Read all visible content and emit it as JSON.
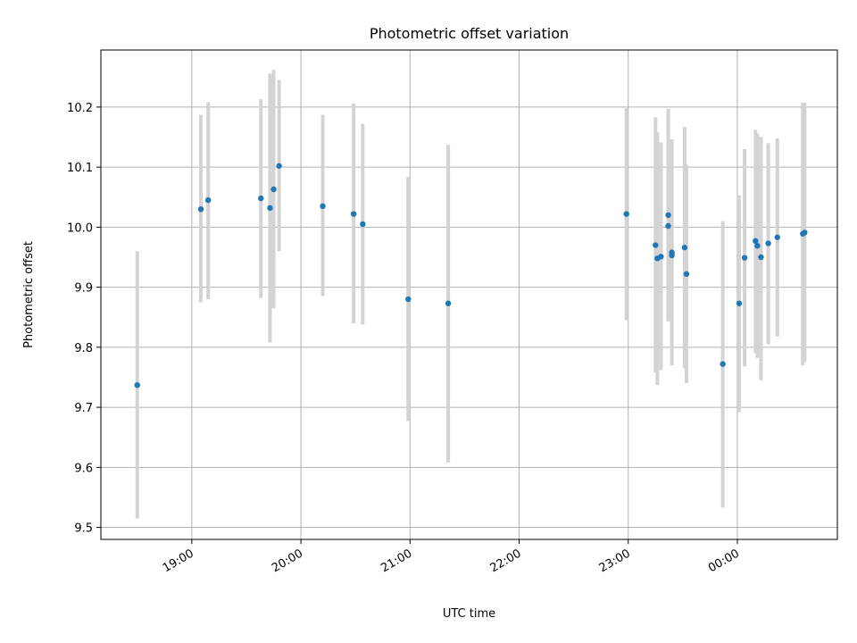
{
  "chart_data": {
    "type": "scatter",
    "title": "Photometric offset variation",
    "xlabel": "UTC time",
    "ylabel": "Photometric offset",
    "x_axis_type": "time",
    "x_axis_start": "2000-01-01 18:10",
    "x_axis_end": "2000-01-02 00:55",
    "x_ticks": [
      {
        "at": "2000-01-01 19:00",
        "label": "19:00"
      },
      {
        "at": "2000-01-01 20:00",
        "label": "20:00"
      },
      {
        "at": "2000-01-01 21:00",
        "label": "21:00"
      },
      {
        "at": "2000-01-01 22:00",
        "label": "22:00"
      },
      {
        "at": "2000-01-01 23:00",
        "label": "23:00"
      },
      {
        "at": "2000-01-02 00:00",
        "label": "00:00"
      }
    ],
    "ylim": [
      9.48,
      10.295
    ],
    "y_ticks": [
      9.5,
      9.6,
      9.7,
      9.8,
      9.9,
      10.0,
      10.1,
      10.2
    ],
    "y_tick_labels": [
      "9.5",
      "9.6",
      "9.7",
      "9.8",
      "9.9",
      "10.0",
      "10.1",
      "10.2"
    ],
    "grid": true,
    "point_color": "#1f77b4",
    "errorbar_color": "#d3d3d3",
    "points": [
      {
        "t": "2000-01-01 18:30",
        "y": 9.737,
        "lo": 9.515,
        "hi": 9.96
      },
      {
        "t": "2000-01-01 19:05",
        "y": 10.03,
        "lo": 9.875,
        "hi": 10.187
      },
      {
        "t": "2000-01-01 19:09",
        "y": 10.045,
        "lo": 9.88,
        "hi": 10.208
      },
      {
        "t": "2000-01-01 19:38",
        "y": 10.048,
        "lo": 9.882,
        "hi": 10.213
      },
      {
        "t": "2000-01-01 19:43",
        "y": 10.032,
        "lo": 9.808,
        "hi": 10.256
      },
      {
        "t": "2000-01-01 19:45",
        "y": 10.063,
        "lo": 9.865,
        "hi": 10.262
      },
      {
        "t": "2000-01-01 19:48",
        "y": 10.102,
        "lo": 9.96,
        "hi": 10.245
      },
      {
        "t": "2000-01-01 20:12",
        "y": 10.035,
        "lo": 9.885,
        "hi": 10.187
      },
      {
        "t": "2000-01-01 20:29",
        "y": 10.022,
        "lo": 9.84,
        "hi": 10.206
      },
      {
        "t": "2000-01-01 20:34",
        "y": 10.005,
        "lo": 9.838,
        "hi": 10.172
      },
      {
        "t": "2000-01-01 20:59",
        "y": 9.88,
        "lo": 9.677,
        "hi": 10.084
      },
      {
        "t": "2000-01-01 21:21",
        "y": 9.873,
        "lo": 9.608,
        "hi": 10.137
      },
      {
        "t": "2000-01-01 22:59",
        "y": 10.022,
        "lo": 9.845,
        "hi": 10.198
      },
      {
        "t": "2000-01-01 23:15",
        "y": 9.97,
        "lo": 9.758,
        "hi": 10.183
      },
      {
        "t": "2000-01-01 23:16",
        "y": 9.948,
        "lo": 9.737,
        "hi": 10.158
      },
      {
        "t": "2000-01-01 23:18",
        "y": 9.951,
        "lo": 9.762,
        "hi": 10.141
      },
      {
        "t": "2000-01-01 23:22",
        "y": 10.02,
        "lo": 9.843,
        "hi": 10.197
      },
      {
        "t": "2000-01-01 23:22",
        "y": 10.002,
        "lo": 9.845,
        "hi": 10.16
      },
      {
        "t": "2000-01-01 23:24",
        "y": 9.958,
        "lo": 9.77,
        "hi": 10.146
      },
      {
        "t": "2000-01-01 23:24",
        "y": 9.953,
        "lo": 9.81,
        "hi": 10.095
      },
      {
        "t": "2000-01-01 23:31",
        "y": 9.966,
        "lo": 9.765,
        "hi": 10.167
      },
      {
        "t": "2000-01-01 23:32",
        "y": 9.922,
        "lo": 9.74,
        "hi": 10.104
      },
      {
        "t": "2000-01-01 23:52",
        "y": 9.772,
        "lo": 9.533,
        "hi": 10.01
      },
      {
        "t": "2000-01-02 00:01",
        "y": 9.873,
        "lo": 9.692,
        "hi": 10.053
      },
      {
        "t": "2000-01-02 00:04",
        "y": 9.949,
        "lo": 9.768,
        "hi": 10.13
      },
      {
        "t": "2000-01-02 00:10",
        "y": 9.977,
        "lo": 9.79,
        "hi": 10.162
      },
      {
        "t": "2000-01-02 00:11",
        "y": 9.969,
        "lo": 9.782,
        "hi": 10.156
      },
      {
        "t": "2000-01-02 00:13",
        "y": 9.95,
        "lo": 9.745,
        "hi": 10.15
      },
      {
        "t": "2000-01-02 00:17",
        "y": 9.973,
        "lo": 9.805,
        "hi": 10.14
      },
      {
        "t": "2000-01-02 00:22",
        "y": 9.983,
        "lo": 9.818,
        "hi": 10.148
      },
      {
        "t": "2000-01-02 00:36",
        "y": 9.989,
        "lo": 9.77,
        "hi": 10.207
      },
      {
        "t": "2000-01-02 00:37",
        "y": 9.991,
        "lo": 9.775,
        "hi": 10.207
      }
    ]
  }
}
